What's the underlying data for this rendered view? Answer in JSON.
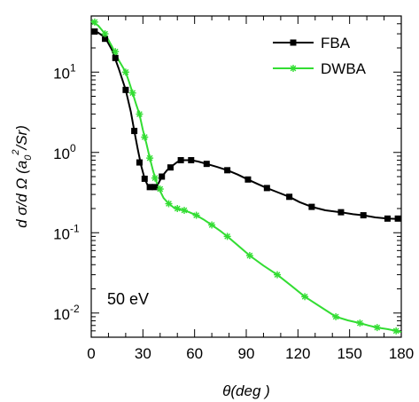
{
  "chart_data": {
    "type": "line",
    "title": "",
    "xlabel": "θ(deg )",
    "ylabel": "dσ/dΩ (a0²/Sr)",
    "ylabel_parts": {
      "lead": "d σ/d Ω (a",
      "sub": "0",
      "sup": "2",
      "tail": "/Sr)"
    },
    "xlim": [
      0,
      180
    ],
    "ylim": [
      0.005,
      50
    ],
    "yscale": "log",
    "xticks": [
      0,
      30,
      60,
      90,
      120,
      150,
      180
    ],
    "xtick_labels": [
      "0",
      "30",
      "60",
      "90",
      "120",
      "150",
      "180"
    ],
    "yticks": [
      0.01,
      0.1,
      1,
      10
    ],
    "ytick_labels": [
      {
        "base": "10",
        "exp": "-2"
      },
      {
        "base": "10",
        "exp": "-1"
      },
      {
        "base": "10",
        "exp": "0"
      },
      {
        "base": "10",
        "exp": "1"
      }
    ],
    "legend_position": "top-right",
    "annotation": "50 eV",
    "series": [
      {
        "name": "FBA",
        "color": "#000000",
        "marker": "square",
        "points": [
          [
            2,
            32
          ],
          [
            8,
            26
          ],
          [
            14,
            15
          ],
          [
            20,
            6
          ],
          [
            25,
            1.85
          ],
          [
            28,
            0.75
          ],
          [
            31,
            0.47
          ],
          [
            34,
            0.37
          ],
          [
            37,
            0.37
          ],
          [
            41,
            0.5
          ],
          [
            46,
            0.65
          ],
          [
            52,
            0.8
          ],
          [
            58,
            0.8
          ],
          [
            67,
            0.72
          ],
          [
            79,
            0.6
          ],
          [
            91,
            0.46
          ],
          [
            102,
            0.36
          ],
          [
            115,
            0.28
          ],
          [
            128,
            0.21
          ],
          [
            145,
            0.18
          ],
          [
            158,
            0.165
          ],
          [
            172,
            0.15
          ],
          [
            178,
            0.15
          ]
        ],
        "curve": [
          [
            0,
            33
          ],
          [
            4,
            31
          ],
          [
            8,
            27
          ],
          [
            12,
            19
          ],
          [
            16,
            11
          ],
          [
            20,
            6
          ],
          [
            23,
            3.2
          ],
          [
            25,
            1.85
          ],
          [
            27,
            1.1
          ],
          [
            29,
            0.68
          ],
          [
            31,
            0.47
          ],
          [
            33,
            0.38
          ],
          [
            35,
            0.355
          ],
          [
            37,
            0.36
          ],
          [
            39,
            0.41
          ],
          [
            41,
            0.5
          ],
          [
            44,
            0.6
          ],
          [
            47,
            0.68
          ],
          [
            50,
            0.76
          ],
          [
            54,
            0.8
          ],
          [
            58,
            0.8
          ],
          [
            62,
            0.77
          ],
          [
            67,
            0.72
          ],
          [
            73,
            0.66
          ],
          [
            79,
            0.6
          ],
          [
            85,
            0.53
          ],
          [
            91,
            0.46
          ],
          [
            96,
            0.41
          ],
          [
            102,
            0.36
          ],
          [
            108,
            0.32
          ],
          [
            115,
            0.28
          ],
          [
            121,
            0.24
          ],
          [
            128,
            0.21
          ],
          [
            136,
            0.19
          ],
          [
            145,
            0.18
          ],
          [
            152,
            0.17
          ],
          [
            158,
            0.165
          ],
          [
            165,
            0.155
          ],
          [
            172,
            0.15
          ],
          [
            178,
            0.148
          ]
        ]
      },
      {
        "name": "DWBA",
        "color": "#33dd33",
        "marker": "asterisk",
        "points": [
          [
            2,
            42
          ],
          [
            8,
            30
          ],
          [
            14,
            18
          ],
          [
            20,
            10
          ],
          [
            24,
            5.5
          ],
          [
            28,
            3
          ],
          [
            31,
            1.55
          ],
          [
            34,
            0.85
          ],
          [
            37,
            0.48
          ],
          [
            40,
            0.35
          ],
          [
            45,
            0.23
          ],
          [
            50,
            0.2
          ],
          [
            54,
            0.19
          ],
          [
            61,
            0.165
          ],
          [
            70,
            0.125
          ],
          [
            79,
            0.09
          ],
          [
            92,
            0.052
          ],
          [
            108,
            0.03
          ],
          [
            124,
            0.016
          ],
          [
            142,
            0.009
          ],
          [
            156,
            0.0075
          ],
          [
            166,
            0.0066
          ],
          [
            177,
            0.006
          ]
        ],
        "curve": [
          [
            0,
            43
          ],
          [
            4,
            38
          ],
          [
            8,
            30
          ],
          [
            12,
            21
          ],
          [
            16,
            14
          ],
          [
            20,
            10
          ],
          [
            22,
            7.5
          ],
          [
            24,
            5.5
          ],
          [
            26,
            4
          ],
          [
            28,
            3
          ],
          [
            30,
            1.9
          ],
          [
            32,
            1.3
          ],
          [
            34,
            0.85
          ],
          [
            36,
            0.58
          ],
          [
            38,
            0.42
          ],
          [
            40,
            0.33
          ],
          [
            42,
            0.27
          ],
          [
            45,
            0.23
          ],
          [
            48,
            0.205
          ],
          [
            51,
            0.195
          ],
          [
            54,
            0.19
          ],
          [
            57,
            0.18
          ],
          [
            61,
            0.165
          ],
          [
            65,
            0.147
          ],
          [
            70,
            0.125
          ],
          [
            75,
            0.105
          ],
          [
            79,
            0.09
          ],
          [
            85,
            0.07
          ],
          [
            92,
            0.052
          ],
          [
            100,
            0.039
          ],
          [
            108,
            0.03
          ],
          [
            116,
            0.022
          ],
          [
            124,
            0.016
          ],
          [
            133,
            0.012
          ],
          [
            142,
            0.009
          ],
          [
            149,
            0.0081
          ],
          [
            156,
            0.0075
          ],
          [
            161,
            0.007
          ],
          [
            166,
            0.0066
          ],
          [
            172,
            0.0063
          ],
          [
            177,
            0.006
          ],
          [
            180,
            0.0058
          ]
        ]
      }
    ]
  }
}
